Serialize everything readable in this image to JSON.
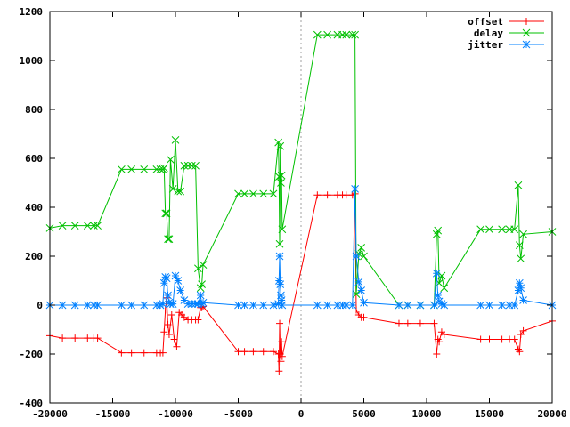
{
  "chart_data": {
    "type": "line",
    "title": "",
    "xlabel": "",
    "ylabel": "",
    "xlim": [
      -20000,
      20000
    ],
    "ylim": [
      -400,
      1200
    ],
    "grid": false,
    "zero_axis_x": true,
    "legend_position": "top-right",
    "x_ticks": [
      -20000,
      -15000,
      -10000,
      -5000,
      0,
      5000,
      10000,
      15000,
      20000
    ],
    "y_ticks": [
      -400,
      -200,
      0,
      200,
      400,
      600,
      800,
      1000,
      1200
    ],
    "x_tick_labels": [
      "-20000",
      "-15000",
      "-10000",
      "-5000",
      "0",
      "5000",
      "10000",
      "15000",
      "20000"
    ],
    "y_tick_labels": [
      "-400",
      "-200",
      "0",
      "200",
      "400",
      "600",
      "800",
      "1000",
      "1200"
    ],
    "series": [
      {
        "name": "offset",
        "color": "#ff0000",
        "marker": "plus",
        "points": [
          [
            -20000,
            -125
          ],
          [
            -19000,
            -135
          ],
          [
            -18000,
            -135
          ],
          [
            -17000,
            -135
          ],
          [
            -16500,
            -135
          ],
          [
            -16200,
            -135
          ],
          [
            -14300,
            -195
          ],
          [
            -13500,
            -195
          ],
          [
            -12500,
            -195
          ],
          [
            -11500,
            -195
          ],
          [
            -11200,
            -195
          ],
          [
            -11000,
            -195
          ],
          [
            -10900,
            -110
          ],
          [
            -10800,
            -20
          ],
          [
            -10700,
            30
          ],
          [
            -10600,
            -80
          ],
          [
            -10500,
            -120
          ],
          [
            -10300,
            -40
          ],
          [
            -10100,
            -140
          ],
          [
            -9900,
            -170
          ],
          [
            -9700,
            -30
          ],
          [
            -9500,
            -40
          ],
          [
            -9300,
            -50
          ],
          [
            -9000,
            -60
          ],
          [
            -8700,
            -60
          ],
          [
            -8400,
            -60
          ],
          [
            -8200,
            -60
          ],
          [
            -8000,
            -10
          ],
          [
            -7900,
            -10
          ],
          [
            -7800,
            -5
          ],
          [
            -5000,
            -190
          ],
          [
            -4500,
            -190
          ],
          [
            -3800,
            -190
          ],
          [
            -3000,
            -190
          ],
          [
            -2200,
            -190
          ],
          [
            -1800,
            -200
          ],
          [
            -1750,
            -270
          ],
          [
            -1700,
            -75
          ],
          [
            -1650,
            -200
          ],
          [
            -1600,
            -230
          ],
          [
            -1550,
            -150
          ],
          [
            -1500,
            -210
          ],
          [
            1300,
            450
          ],
          [
            2100,
            450
          ],
          [
            2900,
            450
          ],
          [
            3300,
            450
          ],
          [
            3600,
            450
          ],
          [
            4100,
            450
          ],
          [
            4300,
            455
          ],
          [
            4400,
            -20
          ],
          [
            4600,
            -40
          ],
          [
            4800,
            -50
          ],
          [
            5000,
            -50
          ],
          [
            7800,
            -75
          ],
          [
            8500,
            -75
          ],
          [
            9500,
            -75
          ],
          [
            10600,
            -75
          ],
          [
            10800,
            -200
          ],
          [
            10900,
            -140
          ],
          [
            11000,
            -150
          ],
          [
            11200,
            -110
          ],
          [
            11400,
            -120
          ],
          [
            14300,
            -140
          ],
          [
            15000,
            -140
          ],
          [
            16000,
            -140
          ],
          [
            16600,
            -140
          ],
          [
            17000,
            -140
          ],
          [
            17300,
            -180
          ],
          [
            17400,
            -190
          ],
          [
            17500,
            -120
          ],
          [
            17700,
            -105
          ],
          [
            20000,
            -65
          ]
        ]
      },
      {
        "name": "delay",
        "color": "#00c000",
        "marker": "cross",
        "points": [
          [
            -20000,
            315
          ],
          [
            -19000,
            325
          ],
          [
            -18000,
            325
          ],
          [
            -17000,
            325
          ],
          [
            -16500,
            325
          ],
          [
            -16200,
            325
          ],
          [
            -14300,
            555
          ],
          [
            -13500,
            555
          ],
          [
            -12500,
            555
          ],
          [
            -11500,
            555
          ],
          [
            -11200,
            555
          ],
          [
            -11000,
            555
          ],
          [
            -10900,
            560
          ],
          [
            -10800,
            375
          ],
          [
            -10700,
            375
          ],
          [
            -10600,
            270
          ],
          [
            -10500,
            270
          ],
          [
            -10400,
            595
          ],
          [
            -10200,
            475
          ],
          [
            -10000,
            675
          ],
          [
            -9800,
            465
          ],
          [
            -9600,
            465
          ],
          [
            -9300,
            570
          ],
          [
            -9000,
            570
          ],
          [
            -8700,
            570
          ],
          [
            -8400,
            570
          ],
          [
            -8200,
            150
          ],
          [
            -8000,
            70
          ],
          [
            -7900,
            85
          ],
          [
            -7800,
            165
          ],
          [
            -5000,
            455
          ],
          [
            -4500,
            455
          ],
          [
            -3800,
            455
          ],
          [
            -3000,
            455
          ],
          [
            -2200,
            455
          ],
          [
            -1800,
            665
          ],
          [
            -1750,
            525
          ],
          [
            -1700,
            250
          ],
          [
            -1650,
            650
          ],
          [
            -1600,
            500
          ],
          [
            -1550,
            530
          ],
          [
            -1500,
            310
          ],
          [
            1300,
            1105
          ],
          [
            2100,
            1105
          ],
          [
            2900,
            1105
          ],
          [
            3300,
            1105
          ],
          [
            3600,
            1105
          ],
          [
            4100,
            1105
          ],
          [
            4300,
            1105
          ],
          [
            4400,
            45
          ],
          [
            4600,
            210
          ],
          [
            4800,
            235
          ],
          [
            5000,
            200
          ],
          [
            7800,
            0
          ],
          [
            8500,
            0
          ],
          [
            9500,
            0
          ],
          [
            10600,
            0
          ],
          [
            10800,
            290
          ],
          [
            10900,
            305
          ],
          [
            11000,
            90
          ],
          [
            11200,
            120
          ],
          [
            11400,
            70
          ],
          [
            14300,
            310
          ],
          [
            15000,
            310
          ],
          [
            16000,
            310
          ],
          [
            16600,
            310
          ],
          [
            17000,
            310
          ],
          [
            17300,
            490
          ],
          [
            17400,
            245
          ],
          [
            17500,
            190
          ],
          [
            17700,
            290
          ],
          [
            20000,
            300
          ]
        ]
      },
      {
        "name": "jitter",
        "color": "#0080ff",
        "marker": "star",
        "points": [
          [
            -20000,
            0
          ],
          [
            -19000,
            0
          ],
          [
            -18000,
            0
          ],
          [
            -17000,
            0
          ],
          [
            -16500,
            0
          ],
          [
            -16200,
            0
          ],
          [
            -14300,
            0
          ],
          [
            -13500,
            0
          ],
          [
            -12500,
            0
          ],
          [
            -11500,
            0
          ],
          [
            -11200,
            0
          ],
          [
            -11000,
            5
          ],
          [
            -10900,
            90
          ],
          [
            -10800,
            115
          ],
          [
            -10700,
            110
          ],
          [
            -10600,
            40
          ],
          [
            -10500,
            10
          ],
          [
            -10400,
            5
          ],
          [
            -10200,
            5
          ],
          [
            -10000,
            120
          ],
          [
            -9800,
            100
          ],
          [
            -9600,
            60
          ],
          [
            -9300,
            20
          ],
          [
            -9000,
            5
          ],
          [
            -8700,
            5
          ],
          [
            -8400,
            5
          ],
          [
            -8200,
            5
          ],
          [
            -8000,
            40
          ],
          [
            -7900,
            5
          ],
          [
            -7800,
            10
          ],
          [
            -5000,
            0
          ],
          [
            -4500,
            0
          ],
          [
            -3800,
            0
          ],
          [
            -3000,
            0
          ],
          [
            -2200,
            0
          ],
          [
            -1800,
            5
          ],
          [
            -1750,
            100
          ],
          [
            -1700,
            200
          ],
          [
            -1650,
            85
          ],
          [
            -1600,
            40
          ],
          [
            -1550,
            20
          ],
          [
            -1500,
            0
          ],
          [
            1300,
            0
          ],
          [
            2100,
            0
          ],
          [
            2900,
            0
          ],
          [
            3300,
            0
          ],
          [
            3600,
            0
          ],
          [
            4100,
            0
          ],
          [
            4300,
            475
          ],
          [
            4400,
            200
          ],
          [
            4600,
            95
          ],
          [
            4800,
            60
          ],
          [
            5000,
            10
          ],
          [
            7800,
            0
          ],
          [
            8500,
            0
          ],
          [
            9500,
            0
          ],
          [
            10600,
            0
          ],
          [
            10800,
            130
          ],
          [
            10900,
            40
          ],
          [
            11000,
            15
          ],
          [
            11200,
            5
          ],
          [
            11400,
            0
          ],
          [
            14300,
            0
          ],
          [
            15000,
            0
          ],
          [
            16000,
            0
          ],
          [
            16600,
            0
          ],
          [
            17000,
            0
          ],
          [
            17300,
            60
          ],
          [
            17400,
            90
          ],
          [
            17500,
            70
          ],
          [
            17700,
            20
          ],
          [
            20000,
            0
          ]
        ]
      }
    ]
  }
}
